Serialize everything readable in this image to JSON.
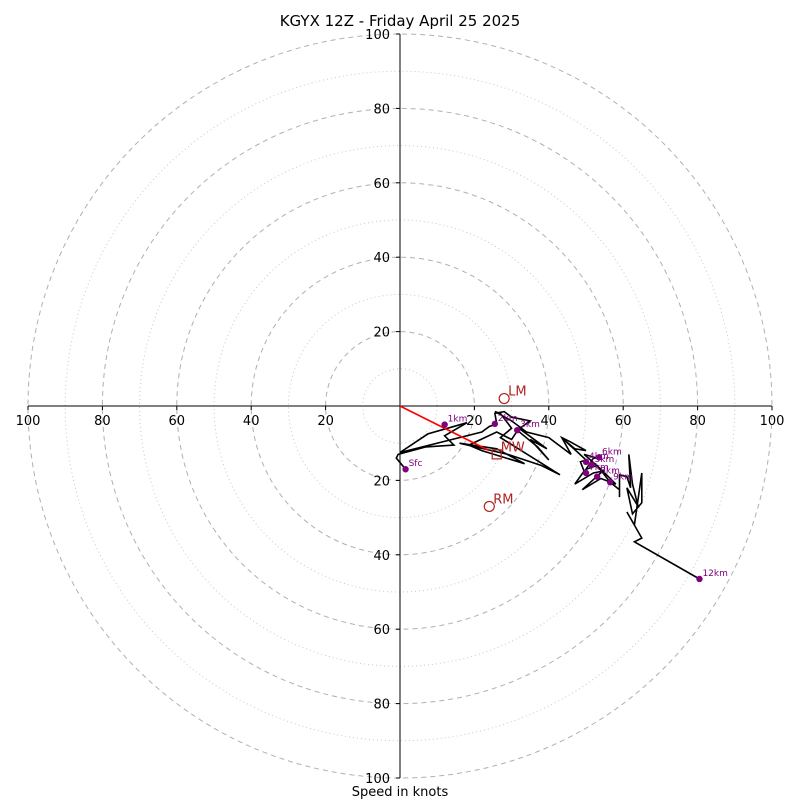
{
  "chart_data": {
    "type": "scatter",
    "title": "KGYX 12Z - Friday April 25 2025",
    "xlabel": "Speed in knots",
    "ylabel": "",
    "xlim": [
      -100,
      100
    ],
    "ylim": [
      -100,
      100
    ],
    "grid": "polar-rings",
    "ring_major": [
      20,
      40,
      60,
      80,
      100
    ],
    "ring_minor": [
      10,
      30,
      50,
      70,
      90
    ],
    "x_ticks": [
      "100",
      "80",
      "60",
      "40",
      "20",
      "20",
      "40",
      "60",
      "80",
      "100"
    ],
    "y_ticks": [
      "100",
      "80",
      "60",
      "40",
      "20",
      "20",
      "40",
      "60",
      "80",
      "100"
    ],
    "x_tick_values": [
      -100,
      -80,
      -60,
      -40,
      -20,
      20,
      40,
      60,
      80,
      100
    ],
    "y_tick_values": [
      100,
      80,
      60,
      40,
      20,
      -20,
      -40,
      -60,
      -80,
      -100
    ],
    "hodograph": [
      [
        1.5,
        -17
      ],
      [
        -1,
        -14
      ],
      [
        -0.5,
        -13
      ],
      [
        7,
        -11
      ],
      [
        14.5,
        -10.5
      ],
      [
        12,
        -8
      ],
      [
        18,
        -4.5
      ],
      [
        7.5,
        -7.5
      ],
      [
        0,
        -12.5
      ],
      [
        22,
        -7
      ],
      [
        24,
        -5.5
      ],
      [
        26,
        -4.8
      ],
      [
        25.5,
        -2
      ],
      [
        28,
        -1.5
      ],
      [
        30,
        -3
      ],
      [
        35,
        -4
      ],
      [
        31.5,
        -6.5
      ],
      [
        37,
        -11
      ],
      [
        40,
        -14.5
      ],
      [
        35,
        -9
      ],
      [
        39.5,
        -11.5
      ],
      [
        32,
        -6
      ],
      [
        30,
        -9
      ],
      [
        26,
        -7
      ],
      [
        18.5,
        -10.5
      ],
      [
        22,
        -12
      ],
      [
        33.5,
        -15.5
      ],
      [
        26,
        -11.5
      ],
      [
        16,
        -10
      ],
      [
        29,
        -13
      ],
      [
        38,
        -16
      ],
      [
        43,
        -18.5
      ],
      [
        27,
        -8.5
      ],
      [
        30,
        -6
      ],
      [
        27,
        -2
      ],
      [
        25.5,
        -1.5
      ],
      [
        30,
        -4
      ],
      [
        34,
        -7
      ],
      [
        40,
        -8.5
      ],
      [
        46,
        -13
      ],
      [
        43.5,
        -8.5
      ],
      [
        45.5,
        -9.5
      ],
      [
        50,
        -12
      ],
      [
        47,
        -11.5
      ],
      [
        44,
        -9
      ],
      [
        50,
        -14.5
      ],
      [
        48.5,
        -15
      ],
      [
        49.5,
        -17.5
      ],
      [
        47,
        -21
      ],
      [
        52,
        -18
      ],
      [
        54.5,
        -17.5
      ],
      [
        49,
        -22.5
      ],
      [
        54,
        -19.5
      ],
      [
        58,
        -21
      ],
      [
        54,
        -17
      ],
      [
        49.5,
        -13
      ],
      [
        53,
        -14
      ],
      [
        52,
        -14
      ],
      [
        50,
        -17
      ],
      [
        53,
        -16
      ],
      [
        56.5,
        -20.5
      ],
      [
        59,
        -22.5
      ],
      [
        59,
        -24.5
      ],
      [
        59,
        -18.5
      ],
      [
        61,
        -19
      ],
      [
        62,
        -22
      ],
      [
        61.5,
        -13
      ],
      [
        62.5,
        -21
      ],
      [
        64,
        -27
      ],
      [
        61,
        -22
      ],
      [
        62.5,
        -29
      ],
      [
        65,
        -26
      ],
      [
        65,
        -18
      ],
      [
        63,
        -32
      ],
      [
        61,
        -28.5
      ],
      [
        65,
        -35.5
      ],
      [
        63,
        -36.5
      ],
      [
        80.5,
        -46.5
      ]
    ],
    "height_markers": [
      {
        "label": "Sfc",
        "u": 1.5,
        "v": -17
      },
      {
        "label": "1km",
        "u": 12,
        "v": -5
      },
      {
        "label": "2km",
        "u": 25.5,
        "v": -4.8
      },
      {
        "label": "3km",
        "u": 31.5,
        "v": -6.5
      },
      {
        "label": "4km",
        "u": 50,
        "v": -15
      },
      {
        "label": "5km",
        "u": 51.5,
        "v": -15.8
      },
      {
        "label": "6km",
        "u": 53.5,
        "v": -13.8
      },
      {
        "label": "7km",
        "u": 50,
        "v": -18
      },
      {
        "label": "8km",
        "u": 53,
        "v": -19
      },
      {
        "label": "9km",
        "u": 56.5,
        "v": -20.5
      },
      {
        "label": "12km",
        "u": 80.5,
        "v": -46.5
      }
    ],
    "storm_motion": [
      {
        "label": "LM",
        "u": 28,
        "v": 2
      },
      {
        "label": "RM",
        "u": 24,
        "v": -27
      },
      {
        "label": "MW",
        "u": 26,
        "v": -13
      }
    ],
    "shear_vector": {
      "from": [
        0,
        0
      ],
      "to": [
        24,
        -12
      ]
    },
    "colors": {
      "hodograph": "#000000",
      "height_marker": "#800080",
      "storm_motion": "#b22222",
      "shear_vector": "#ff0000",
      "grid": "#b0b0b0",
      "axis": "#000000"
    }
  }
}
